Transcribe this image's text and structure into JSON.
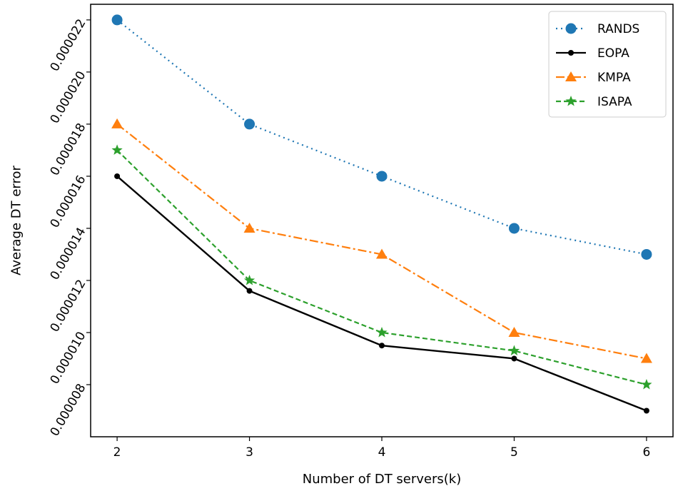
{
  "chart_data": {
    "type": "line",
    "xlabel": "Number of DT servers(k)",
    "ylabel": "Average DT error",
    "x": [
      2,
      3,
      4,
      5,
      6
    ],
    "xlim": [
      1.8,
      6.2
    ],
    "ylim": [
      6e-06,
      2.26e-05
    ],
    "yticks": [
      "0.000008",
      "0.000010",
      "0.000012",
      "0.000014",
      "0.000016",
      "0.000018",
      "0.000020",
      "0.000022"
    ],
    "ytick_values": [
      8e-06,
      1e-05,
      1.2e-05,
      1.4e-05,
      1.6e-05,
      1.8e-05,
      2e-05,
      2.2e-05
    ],
    "grid": false,
    "legend_position": "top-right",
    "series": [
      {
        "name": "RANDS",
        "color": "#1f77b4",
        "linestyle": "dotted",
        "marker": "circle",
        "values": [
          2.2e-05,
          1.8e-05,
          1.6e-05,
          1.4e-05,
          1.3e-05
        ]
      },
      {
        "name": "EOPA",
        "color": "#000000",
        "linestyle": "solid",
        "marker": "dot",
        "values": [
          1.6e-05,
          1.16e-05,
          9.5e-06,
          9e-06,
          7e-06
        ]
      },
      {
        "name": "KMPA",
        "color": "#ff7f0e",
        "linestyle": "dashdot",
        "marker": "triangle",
        "values": [
          1.8e-05,
          1.4e-05,
          1.3e-05,
          1e-05,
          9e-06
        ]
      },
      {
        "name": "ISAPA",
        "color": "#2ca02c",
        "linestyle": "dashed",
        "marker": "star",
        "values": [
          1.7e-05,
          1.2e-05,
          1e-05,
          9.3e-06,
          8e-06
        ]
      }
    ]
  }
}
